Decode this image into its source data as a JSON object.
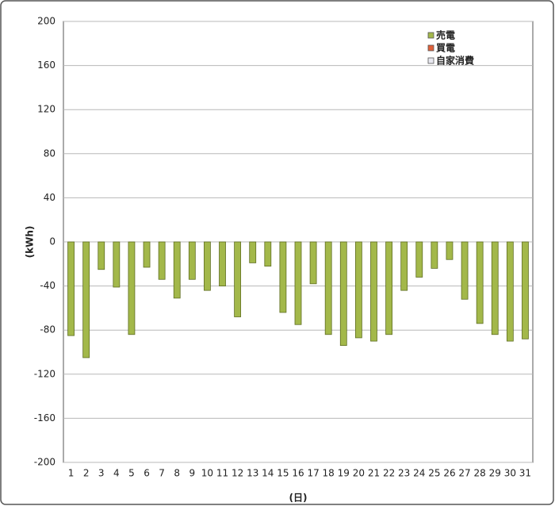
{
  "chart_data": {
    "type": "bar",
    "y_label": "(kWh)",
    "x_label": "(日)",
    "categories": [
      "1",
      "2",
      "3",
      "4",
      "5",
      "6",
      "7",
      "8",
      "9",
      "10",
      "11",
      "12",
      "13",
      "14",
      "15",
      "16",
      "17",
      "18",
      "19",
      "20",
      "21",
      "22",
      "23",
      "24",
      "25",
      "26",
      "27",
      "28",
      "29",
      "30",
      "31"
    ],
    "series": [
      {
        "name": "売電",
        "color": "#a3b84a",
        "values": [
          -85,
          -105,
          -25,
          -41,
          -84,
          -23,
          -34,
          -51,
          -34,
          -44,
          -40,
          -68,
          -19,
          -22,
          -64,
          -75,
          -38,
          -84,
          -94,
          -87,
          -90,
          -84,
          -44,
          -32,
          -24,
          -16,
          -52,
          -74,
          -84,
          -90,
          -88
        ]
      },
      {
        "name": "買電",
        "color": "#e0603a",
        "values": [
          null,
          null,
          null,
          null,
          null,
          null,
          null,
          null,
          null,
          null,
          null,
          null,
          null,
          null,
          null,
          null,
          null,
          null,
          null,
          null,
          null,
          null,
          null,
          null,
          null,
          null,
          null,
          null,
          null,
          null,
          null
        ]
      },
      {
        "name": "自家消費",
        "color": "#e8e8f0",
        "values": [
          null,
          null,
          null,
          null,
          null,
          null,
          null,
          null,
          null,
          null,
          null,
          null,
          null,
          null,
          null,
          null,
          null,
          null,
          null,
          null,
          null,
          null,
          null,
          null,
          null,
          null,
          null,
          null,
          null,
          null,
          null
        ]
      }
    ],
    "ylim": [
      -200,
      200
    ],
    "yticks": [
      -200,
      -160,
      -120,
      -80,
      -40,
      0,
      40,
      80,
      120,
      160,
      200
    ],
    "grid": true,
    "legend": "top-right"
  }
}
